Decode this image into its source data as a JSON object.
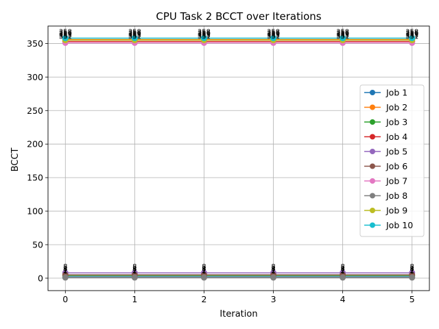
{
  "chart_data": {
    "type": "line",
    "title": "CPU Task 2 BCCT over Iterations",
    "xlabel": "Iteration",
    "ylabel": "BCCT",
    "x": [
      0,
      1,
      2,
      3,
      4,
      5
    ],
    "xlim": [
      -0.25,
      5.25
    ],
    "ylim": [
      -18.5,
      376
    ],
    "yticks": [
      0,
      50,
      100,
      150,
      200,
      250,
      300,
      350
    ],
    "xticks": [
      0,
      1,
      2,
      3,
      4,
      5
    ],
    "grid": true,
    "legend_position": "center-right",
    "series": [
      {
        "name": "Job 1",
        "color": "#1f77b4",
        "values": [
          2,
          2,
          2,
          2,
          2,
          2
        ]
      },
      {
        "name": "Job 2",
        "color": "#ff7f0e",
        "values": [
          356,
          356,
          356,
          356,
          356,
          356
        ]
      },
      {
        "name": "Job 3",
        "color": "#2ca02c",
        "values": [
          4,
          4,
          4,
          4,
          4,
          4
        ]
      },
      {
        "name": "Job 4",
        "color": "#d62728",
        "values": [
          353,
          353,
          353,
          353,
          353,
          353
        ]
      },
      {
        "name": "Job 5",
        "color": "#9467bd",
        "values": [
          8,
          8,
          8,
          8,
          8,
          8
        ]
      },
      {
        "name": "Job 6",
        "color": "#8c564b",
        "values": [
          5,
          5,
          5,
          5,
          5,
          5
        ]
      },
      {
        "name": "Job 7",
        "color": "#e377c2",
        "values": [
          351,
          351,
          351,
          351,
          351,
          351
        ]
      },
      {
        "name": "Job 8",
        "color": "#7f7f7f",
        "values": [
          1,
          1,
          1,
          1,
          1,
          1
        ]
      },
      {
        "name": "Job 9",
        "color": "#bcbd22",
        "values": [
          355,
          355,
          355,
          355,
          355,
          355
        ]
      },
      {
        "name": "Job 10",
        "color": "#17becf",
        "values": [
          358,
          358,
          358,
          358,
          358,
          358
        ]
      }
    ]
  }
}
